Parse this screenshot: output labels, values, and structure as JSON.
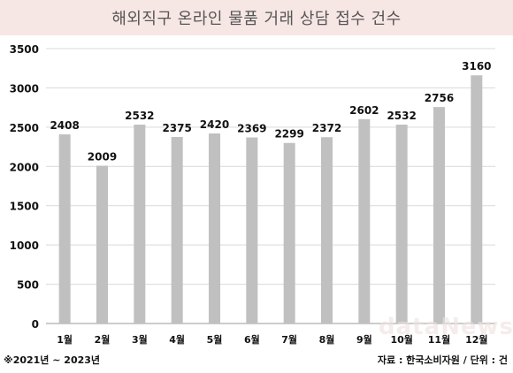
{
  "chart_data": {
    "type": "bar",
    "title": "해외직구 온라인 물품 거래 상담 접수 건수",
    "categories": [
      "1월",
      "2월",
      "3월",
      "4월",
      "5월",
      "6월",
      "7월",
      "8월",
      "9월",
      "10월",
      "11월",
      "12월"
    ],
    "values": [
      2408,
      2009,
      2532,
      2375,
      2420,
      2369,
      2299,
      2372,
      2602,
      2532,
      2756,
      3160
    ],
    "ylim": [
      0,
      3500
    ],
    "yticks": [
      0,
      500,
      1000,
      1500,
      2000,
      2500,
      3000,
      3500
    ],
    "grid": true,
    "bar_color": "#c0c0c0"
  },
  "footer": {
    "period": "※2021년 ~ 2023년",
    "source": "자료 : 한국소비자원 / 단위 : 건"
  },
  "watermark": "dataNews"
}
